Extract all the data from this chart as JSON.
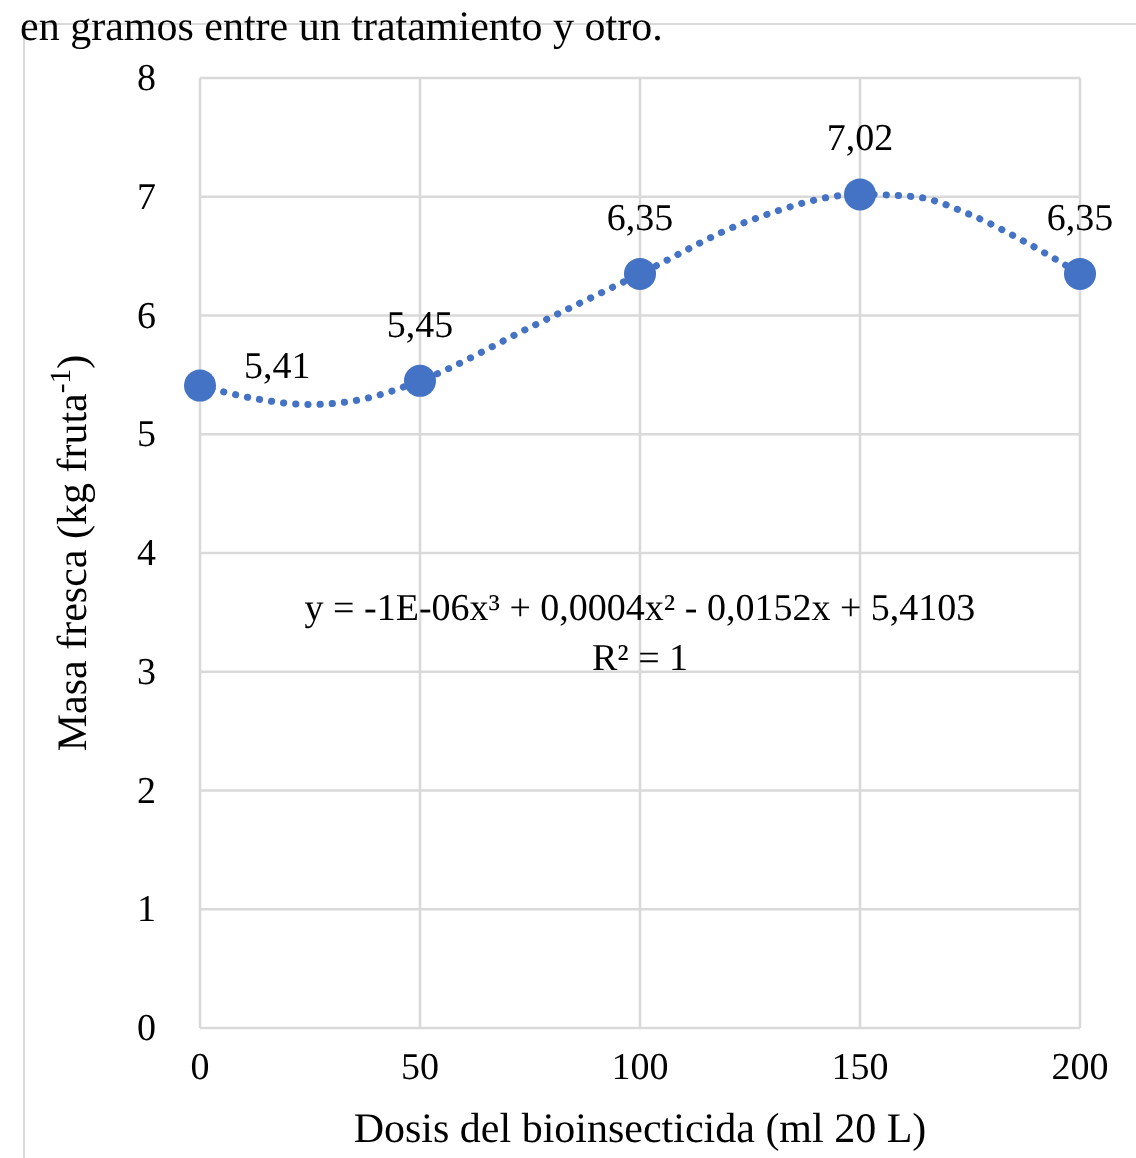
{
  "chart_data": {
    "type": "scatter",
    "xlabel": "Dosis del bioinsecticida (ml 20 L)",
    "ylabel": "Masa fresca (kg fruta$^{-1}$)",
    "annotations": [
      "en gramos entre un tratamiento y otro.",
      "y = -1E-06x³ + 0,0004x² - 0,0152x + 5,4103",
      "R² = 1"
    ],
    "xlim": [
      0,
      200
    ],
    "xticks": [
      0,
      50,
      100,
      150,
      200
    ],
    "ylim": [
      0,
      8
    ],
    "yticks": [
      0,
      1,
      2,
      3,
      4,
      5,
      6,
      7,
      8
    ],
    "grid": true,
    "series": [
      {
        "color": "#4472c4",
        "marker": "circle",
        "x": [
          0,
          50,
          100,
          150,
          200
        ],
        "values": [
          5.41,
          5.45,
          6.35,
          7.02,
          6.35
        ],
        "value_labels": [
          "5,41",
          "5,45",
          "6,35",
          "7,02",
          "6,35"
        ]
      },
      {
        "type": "line",
        "color": "#4472c4",
        "line_style": "dotted",
        "x": [
          0,
          12.5,
          25,
          37.5,
          50,
          75,
          100,
          125,
          150,
          162.5,
          175,
          187.5,
          200
        ],
        "values": [
          5.41,
          5.3,
          5.25,
          5.3,
          5.45,
          5.9,
          6.35,
          6.8,
          7.02,
          7.0,
          6.85,
          6.62,
          6.35
        ]
      }
    ]
  }
}
